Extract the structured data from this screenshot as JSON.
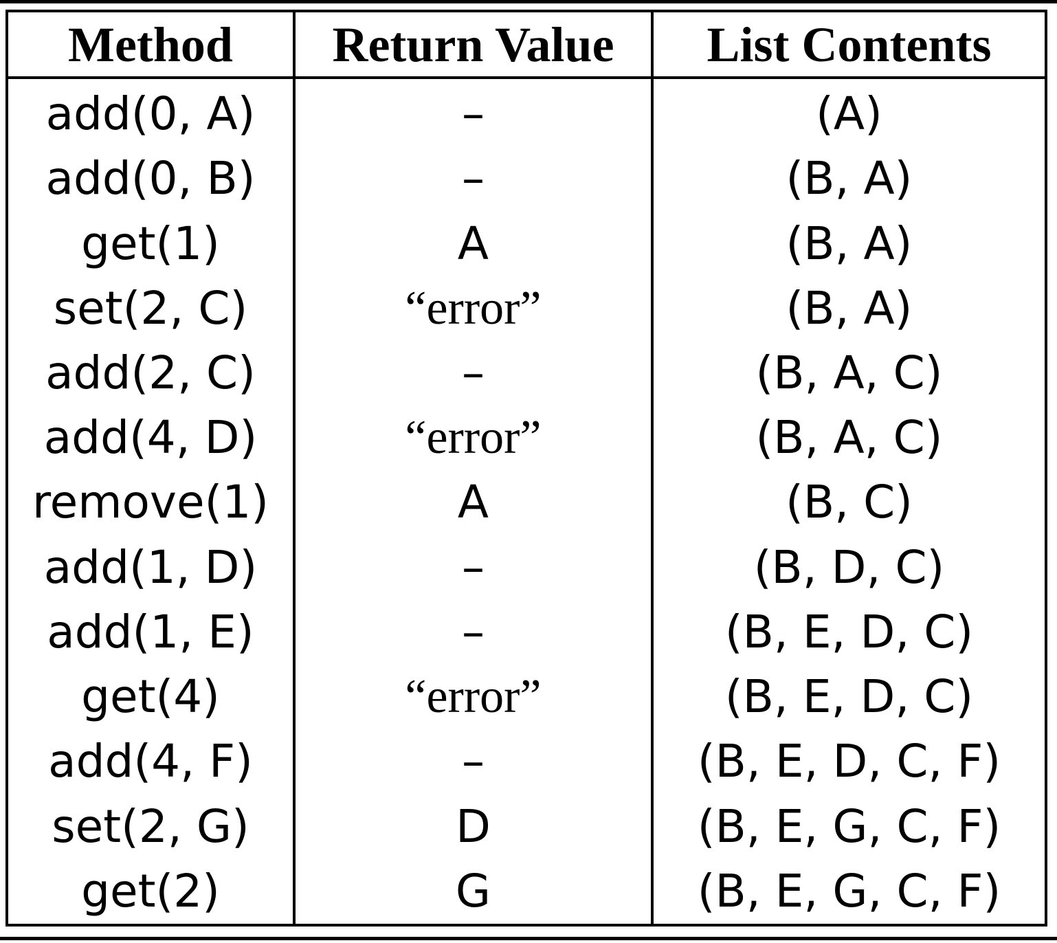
{
  "table": {
    "headers": [
      "Method",
      "Return Value",
      "List Contents"
    ],
    "rows": [
      {
        "method": "add(0, A)",
        "return": "–",
        "contents": "(A)"
      },
      {
        "method": "add(0, B)",
        "return": "–",
        "contents": "(B, A)"
      },
      {
        "method": "get(1)",
        "return": "A",
        "contents": "(B, A)"
      },
      {
        "method": "set(2, C)",
        "return": "“error”",
        "contents": "(B, A)"
      },
      {
        "method": "add(2, C)",
        "return": "–",
        "contents": "(B, A, C)"
      },
      {
        "method": "add(4, D)",
        "return": "“error”",
        "contents": "(B, A, C)"
      },
      {
        "method": "remove(1)",
        "return": "A",
        "contents": "(B, C)"
      },
      {
        "method": "add(1, D)",
        "return": "–",
        "contents": "(B, D, C)"
      },
      {
        "method": "add(1, E)",
        "return": "–",
        "contents": "(B, E, D, C)"
      },
      {
        "method": "get(4)",
        "return": "“error”",
        "contents": "(B, E, D, C)"
      },
      {
        "method": "add(4, F)",
        "return": "–",
        "contents": "(B, E, D, C, F)"
      },
      {
        "method": "set(2, G)",
        "return": "D",
        "contents": "(B, E, G, C, F)"
      },
      {
        "method": "get(2)",
        "return": "G",
        "contents": "(B, E, G, C, F)"
      }
    ]
  }
}
